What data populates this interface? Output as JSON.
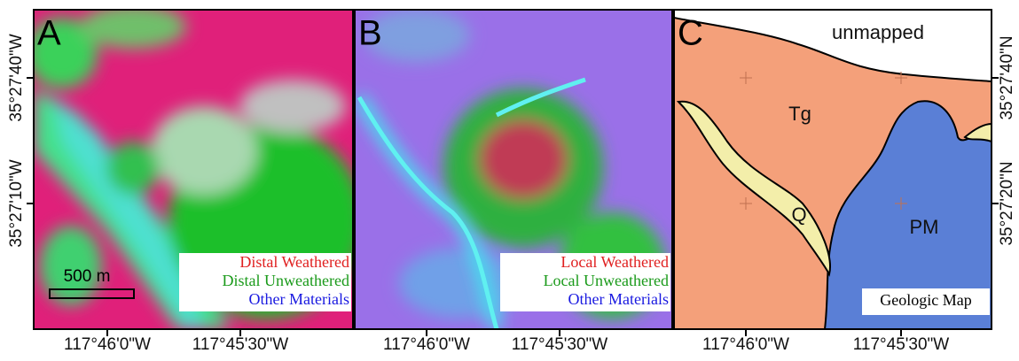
{
  "panels": [
    {
      "letter": "A",
      "legend": [
        "Distal Weathered",
        "Distal Unweathered",
        "Other Materials"
      ],
      "scale_bar": "500 m"
    },
    {
      "letter": "B",
      "legend": [
        "Local Weathered",
        "Local Unweathered",
        "Other Materials"
      ]
    },
    {
      "letter": "C",
      "labels": [
        "unmapped",
        "Tg",
        "Q",
        "PM"
      ],
      "legend": "Geologic Map"
    }
  ],
  "x_axis_labels": [
    "117°46'0\"W",
    "117°45'30\"W"
  ],
  "left_axis_labels": [
    "35°27'40\"W",
    "35°27'10\"W"
  ],
  "right_axis_labels": [
    "35°27'40\"N",
    "35°27'20\"N"
  ]
}
